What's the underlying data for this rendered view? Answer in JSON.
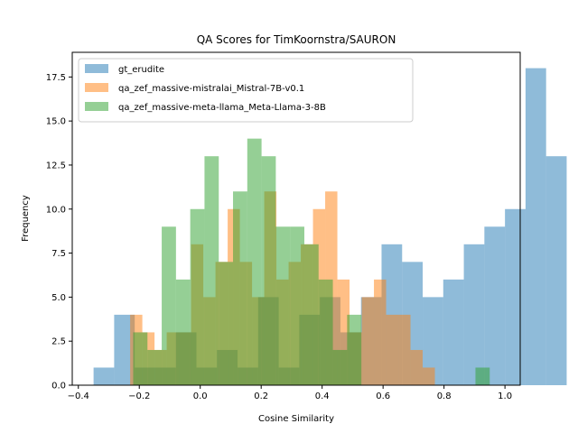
{
  "chart_data": {
    "type": "bar",
    "title": "QA Scores for TimKoornstra/SAURON",
    "xlabel": "Cosine Similarity",
    "ylabel": "Frequency",
    "xlim": [
      -0.42,
      1.05
    ],
    "ylim": [
      0,
      18.9
    ],
    "xticks": [
      -0.4,
      -0.2,
      0.0,
      0.2,
      0.4,
      0.6,
      0.8,
      1.0
    ],
    "xtick_labels": [
      "−0.4",
      "−0.2",
      "0.0",
      "0.2",
      "0.4",
      "0.6",
      "0.8",
      "1.0"
    ],
    "yticks": [
      0,
      2.5,
      5,
      7.5,
      10,
      12.5,
      15,
      17.5
    ],
    "ytick_labels": [
      "0.0",
      "2.5",
      "5.0",
      "7.5",
      "10.0",
      "12.5",
      "15.0",
      "17.5"
    ],
    "legend_position": "top-left",
    "grid": false,
    "series": [
      {
        "name": "gt_erudite",
        "color": "#1f77b4",
        "alpha": 0.5,
        "bin_start": -0.35,
        "bin_width": 0.0675,
        "values": [
          1,
          4,
          1,
          1,
          3,
          1,
          2,
          1,
          5,
          1,
          4,
          5,
          3,
          5,
          8,
          7,
          5,
          6,
          8,
          9,
          10,
          18,
          13
        ]
      },
      {
        "name": "qa_zef_massive-mistralai_Mistral-7B-v0.1",
        "color": "#ff7f0e",
        "alpha": 0.5,
        "bin_start": -0.23,
        "bin_width": 0.04,
        "values": [
          4,
          3,
          2,
          3,
          3,
          8,
          5,
          7,
          10,
          7,
          5,
          11,
          6,
          7,
          8,
          10,
          11,
          6,
          3,
          5,
          6,
          4,
          4,
          2,
          1
        ]
      },
      {
        "name": "qa_zef_massive-meta-llama_Meta-Llama-3-8B",
        "color": "#2ca02c",
        "alpha": 0.5,
        "bin_start": -0.22,
        "bin_width": 0.0468,
        "values": [
          3,
          2,
          9,
          6,
          10,
          13,
          7,
          11,
          14,
          13,
          9,
          9,
          8,
          6,
          2,
          4,
          0,
          0,
          0,
          0,
          0,
          0,
          0,
          0,
          1
        ]
      }
    ]
  }
}
